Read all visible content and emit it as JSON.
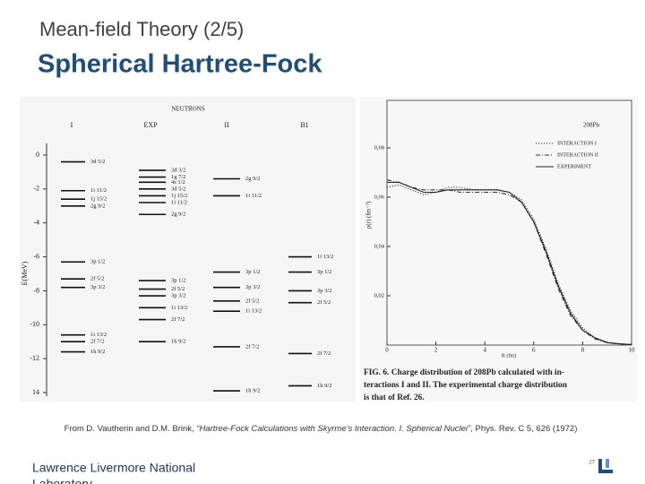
{
  "header": {
    "kicker": "Mean-field Theory (2/5)",
    "title": "Spherical Hartree-Fock"
  },
  "figures": [
    {
      "type": "levels",
      "heading": "NEUTRONS",
      "ylabel": "E(MeV)",
      "ylim": [
        -14,
        0
      ],
      "yticks": [
        0,
        -2,
        -4,
        -6,
        -8,
        -10,
        -12,
        {
          "value": -14,
          "label": "14"
        }
      ],
      "columns": [
        {
          "name": "I",
          "levels": [
            {
              "label": "3d 5/2",
              "energy": -0.4
            },
            {
              "label": "1i 11/2",
              "energy": -2.1
            },
            {
              "label": "1j 15/2",
              "energy": -2.6
            },
            {
              "label": "2g 9/2",
              "energy": -3.0
            },
            {
              "label": "3p 1/2",
              "energy": -6.3
            },
            {
              "label": "2f 5/2",
              "energy": -7.3
            },
            {
              "label": "3p 3/2",
              "energy": -7.8
            },
            {
              "label": "1i 13/2",
              "energy": -10.6
            },
            {
              "label": "2f 7/2",
              "energy": -11.0
            },
            {
              "label": "1h 9/2",
              "energy": -11.6
            }
          ]
        },
        {
          "name": "EXP",
          "levels": [
            {
              "label": "3d 3/2",
              "energy": -0.9
            },
            {
              "label": "1g 7/2",
              "energy": -1.3
            },
            {
              "label": "4s 1/2",
              "energy": -1.6
            },
            {
              "label": "3d 5/2",
              "energy": -2.0
            },
            {
              "label": "1j 15/2",
              "energy": -2.4
            },
            {
              "label": "1i 11/2",
              "energy": -2.8
            },
            {
              "label": "2g 9/2",
              "energy": -3.5
            },
            {
              "label": "3p 1/2",
              "energy": -7.4
            },
            {
              "label": "2f 5/2",
              "energy": -7.9
            },
            {
              "label": "3p 3/2",
              "energy": -8.3
            },
            {
              "label": "1i 13/2",
              "energy": -9.0
            },
            {
              "label": "2f 7/2",
              "energy": -9.7
            },
            {
              "label": "1h 9/2",
              "energy": -11.0
            }
          ]
        },
        {
          "name": "II",
          "levels": [
            {
              "label": "2g 9/2",
              "energy": -1.4
            },
            {
              "label": "1i 11/2",
              "energy": -2.4
            },
            {
              "label": "3p 1/2",
              "energy": -6.9
            },
            {
              "label": "3p 3/2",
              "energy": -7.8
            },
            {
              "label": "2f 5/2",
              "energy": -8.6
            },
            {
              "label": "1i 13/2",
              "energy": -9.2
            },
            {
              "label": "2f 7/2",
              "energy": -11.3
            },
            {
              "label": "1h 9/2",
              "energy": -13.9
            }
          ]
        },
        {
          "name": "B1",
          "levels": [
            {
              "label": "1i 13/2",
              "energy": -6.0
            },
            {
              "label": "3p 1/2",
              "energy": -6.9
            },
            {
              "label": "3p 3/2",
              "energy": -8.0
            },
            {
              "label": "2f 5/2",
              "energy": -8.7
            },
            {
              "label": "2f 7/2",
              "energy": -11.7
            },
            {
              "label": "1h 9/2",
              "energy": -13.6
            }
          ]
        }
      ]
    },
    {
      "type": "line",
      "nucleus": "208Pb",
      "xlabel": "R (fm)",
      "ylabel": "ρ(r) (fm⁻³)",
      "xlim": [
        0,
        10
      ],
      "ylim": [
        0,
        0.1
      ],
      "xticks": [
        0,
        2,
        4,
        6,
        8,
        10
      ],
      "yticks": [
        {
          "value": 0.02,
          "label": "0,02"
        },
        {
          "value": 0.04,
          "label": "0,04"
        },
        {
          "value": 0.06,
          "label": "0,06"
        },
        {
          "value": 0.08,
          "label": "0,08"
        }
      ],
      "x": [
        0,
        0.5,
        1,
        1.5,
        2,
        2.5,
        3,
        3.5,
        4,
        4.5,
        5,
        5.5,
        6,
        6.5,
        7,
        7.5,
        8,
        8.5,
        9,
        9.5,
        10
      ],
      "series": [
        {
          "name": "INTERACTION I",
          "style": "dotted",
          "color": "#333333",
          "values": [
            0.064,
            0.065,
            0.063,
            0.061,
            0.062,
            0.064,
            0.064,
            0.063,
            0.063,
            0.063,
            0.062,
            0.059,
            0.051,
            0.039,
            0.025,
            0.014,
            0.007,
            0.003,
            0.0012,
            0.0005,
            0.0002
          ]
        },
        {
          "name": "INTERACTION II",
          "style": "dashdot",
          "color": "#333333",
          "values": [
            0.067,
            0.066,
            0.064,
            0.063,
            0.063,
            0.063,
            0.062,
            0.062,
            0.062,
            0.062,
            0.061,
            0.058,
            0.05,
            0.037,
            0.023,
            0.012,
            0.006,
            0.0025,
            0.001,
            0.0004,
            0.0002
          ]
        },
        {
          "name": "EXPERIMENT",
          "style": "solid",
          "color": "#222222",
          "values": [
            0.066,
            0.066,
            0.064,
            0.062,
            0.062,
            0.063,
            0.063,
            0.063,
            0.063,
            0.063,
            0.062,
            0.058,
            0.05,
            0.038,
            0.024,
            0.013,
            0.006,
            0.003,
            0.001,
            0.0005,
            0.0002
          ]
        }
      ],
      "caption": [
        "FIG. 6.  Charge distribution of 208Pb calculated with in-",
        "teractions I and II.  The experimental charge distribution",
        "is that of Ref. 26."
      ]
    }
  ],
  "citation": {
    "prefix": "From D. Vautherin and D.M. Brink, ",
    "title": "“Hartree-Fock Calculations with Skyrme's Interaction. I. Spherical Nuclei”",
    "suffix": ", Phys. Rev. C 5, 626 (1972)"
  },
  "footer": {
    "lines": [
      "Lawrence Livermore National",
      "Laboratory"
    ],
    "page": "27"
  }
}
